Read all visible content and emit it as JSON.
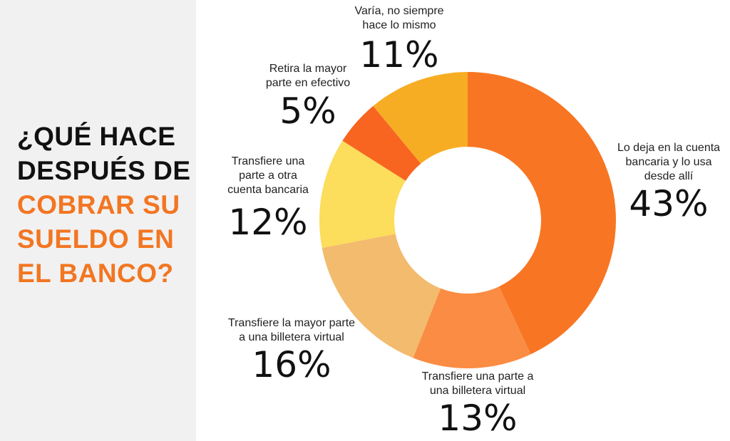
{
  "title": {
    "lines": [
      {
        "text": "¿QUÉ HACE",
        "accent": false
      },
      {
        "text": "DESPUÉS DE",
        "accent": false
      },
      {
        "text": "COBRAR SU",
        "accent": true
      },
      {
        "text": "SUELDO EN",
        "accent": true
      },
      {
        "text": "EL BANCO?",
        "accent": true
      }
    ]
  },
  "colors": {
    "accent": "#f27622",
    "panel_bg": "#f1f1f1"
  },
  "chart_data": {
    "type": "pie",
    "donut": true,
    "title": "¿QUÉ HACE DESPUÉS DE COBRAR SU SUELDO EN EL BANCO?",
    "slices": [
      {
        "label": "Lo deja en la cuenta bancaria y lo usa desde allí",
        "label_lines": [
          "Lo deja en la cuenta",
          "bancaria y lo usa",
          "desde allí"
        ],
        "value": 43,
        "value_text": "43%",
        "color": "#f87623"
      },
      {
        "label": "Transfiere una parte a una billetera virtual",
        "label_lines": [
          "Transfiere una parte a",
          "una billetera virtual"
        ],
        "value": 13,
        "value_text": "13%",
        "color": "#fb8c44"
      },
      {
        "label": "Transfiere la mayor parte a una billetera virtual",
        "label_lines": [
          "Transfiere la mayor parte",
          "a una billetera virtual"
        ],
        "value": 16,
        "value_text": "16%",
        "color": "#f3bb6e"
      },
      {
        "label": "Transfiere una parte a otra cuenta bancaria",
        "label_lines": [
          "Transfiere una",
          "parte a otra",
          "cuenta bancaria"
        ],
        "value": 12,
        "value_text": "12%",
        "color": "#fcdd5c"
      },
      {
        "label": "Retira la mayor parte en efectivo",
        "label_lines": [
          "Retira la mayor",
          "parte en efectivo"
        ],
        "value": 5,
        "value_text": "5%",
        "color": "#f86521"
      },
      {
        "label": "Varía, no siempre hace lo mismo",
        "label_lines": [
          "Varía, no siempre",
          "hace lo mismo"
        ],
        "value": 11,
        "value_text": "11%",
        "color": "#f7ad23"
      }
    ]
  }
}
